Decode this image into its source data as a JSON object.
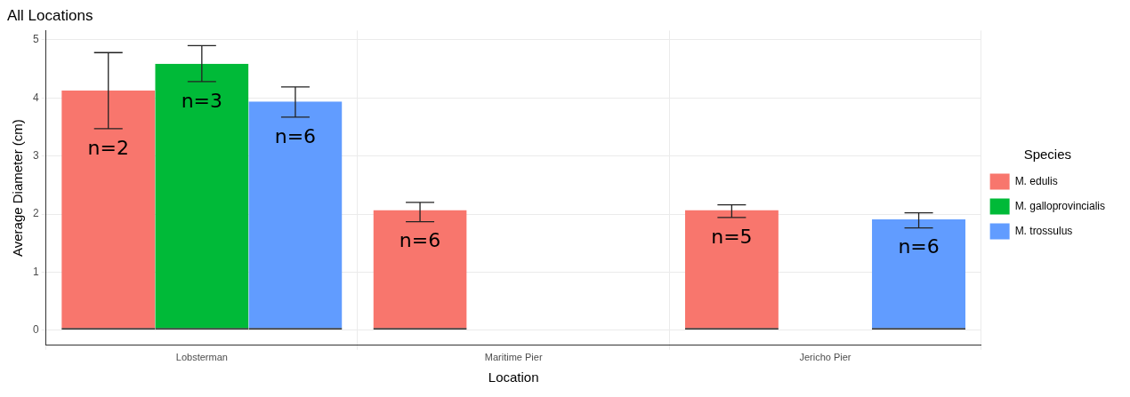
{
  "chart_data": {
    "type": "bar",
    "title": "All Locations",
    "xlabel": "Location",
    "ylabel": "Average Diameter (cm)",
    "legend_title": "Species",
    "categories": [
      "Lobsterman",
      "Maritime Pier",
      "Jericho Pier"
    ],
    "series": [
      {
        "name": "M. edulis",
        "color": "#f8766d",
        "values": [
          4.13,
          2.07,
          2.07
        ],
        "errors": [
          [
            3.47,
            4.78
          ],
          [
            1.87,
            2.2
          ],
          [
            1.94,
            2.16
          ]
        ]
      },
      {
        "name": "M. galloprovincialis",
        "color": "#00ba38",
        "values": [
          4.59,
          0,
          0
        ],
        "errors": [
          [
            4.28,
            4.9
          ],
          null,
          null
        ]
      },
      {
        "name": "M. trossulus",
        "color": "#619cff",
        "values": [
          3.94,
          0,
          1.91
        ],
        "errors": [
          [
            3.67,
            4.19
          ],
          null,
          [
            1.76,
            2.02
          ]
        ]
      }
    ],
    "annotations": [
      "n=2",
      "n=3",
      "n=6",
      "n=6",
      "n=5",
      "n=6"
    ],
    "ylim": [
      -0.26,
      5.16
    ],
    "yticks": [
      0,
      1,
      2,
      3,
      4,
      5
    ],
    "grid": true,
    "legend": "right"
  }
}
